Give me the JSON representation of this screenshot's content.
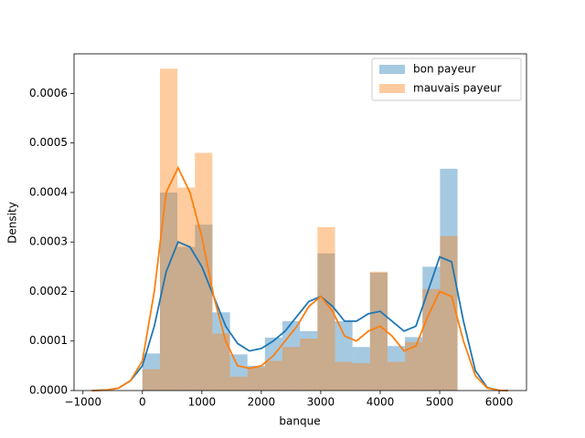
{
  "chart_data": {
    "type": "histogram",
    "xlabel": "banque",
    "ylabel": "Density",
    "bins": [
      0,
      294.4,
      588.9,
      883.3,
      1177.8,
      1472.2,
      1766.7,
      2061.1,
      2355.6,
      2650,
      2944.4,
      3238.9,
      3533.3,
      3827.8,
      4122.2,
      4416.7,
      4711.1,
      5005.6,
      5300
    ],
    "kde_x": [
      -850,
      -600,
      -400,
      -200,
      0,
      200,
      400,
      600,
      800,
      1000,
      1200,
      1400,
      1600,
      1800,
      2000,
      2200,
      2400,
      2600,
      2800,
      3000,
      3200,
      3400,
      3600,
      3800,
      4000,
      4200,
      4400,
      4600,
      4800,
      5000,
      5200,
      5400,
      5600,
      5800,
      6000,
      6150
    ],
    "series": [
      {
        "name": "bon payeur",
        "color": "#1f77b4",
        "values": [
          7.5e-05,
          0.0004,
          0.00029,
          0.000335,
          0.000158,
          7.3e-05,
          5e-05,
          0.000107,
          0.00014,
          0.00012,
          0.000277,
          0.00014,
          8.8e-05,
          0.000238,
          9e-05,
          0.000108,
          0.00025,
          0.000448
        ],
        "kde": [
          0,
          1e-06,
          5e-06,
          2e-05,
          5e-05,
          0.00013,
          0.00024,
          0.0003,
          0.00029,
          0.00025,
          0.00019,
          0.00013,
          9.5e-05,
          8e-05,
          8.5e-05,
          0.0001,
          0.00012,
          0.00015,
          0.00018,
          0.00019,
          0.00017,
          0.00014,
          0.00014,
          0.000155,
          0.00016,
          0.00014,
          0.00012,
          0.00013,
          0.0002,
          0.00027,
          0.00026,
          0.00014,
          4e-05,
          6e-06,
          5e-07,
          0
        ]
      },
      {
        "name": "mauvais payeur",
        "color": "#ff7f0e",
        "values": [
          4.3e-05,
          0.00065,
          0.00041,
          0.00048,
          0.000115,
          2.8e-05,
          4.7e-05,
          6e-05,
          8.8e-05,
          0.000105,
          0.00033,
          5.8e-05,
          5.5e-05,
          0.00024,
          5.8e-05,
          9.8e-05,
          0.000205,
          0.000312
        ],
        "kde": [
          0,
          1e-06,
          5e-06,
          2e-05,
          6e-05,
          0.0002,
          0.0004,
          0.00045,
          0.0004,
          0.00031,
          0.00019,
          0.0001,
          5e-05,
          4.5e-05,
          5e-05,
          7e-05,
          0.0001,
          0.00013,
          0.00017,
          0.00019,
          0.00016,
          0.00011,
          0.0001,
          0.00012,
          0.00013,
          0.00011,
          8e-05,
          9e-05,
          0.00015,
          0.0002,
          0.00019,
          0.0001,
          3e-05,
          5e-06,
          4e-07,
          0
        ]
      }
    ],
    "xlim": [
      -1150,
      6460
    ],
    "ylim": [
      0,
      0.00068
    ],
    "xticks": [
      {
        "value": -1000,
        "label": "−1000"
      },
      0,
      1000,
      2000,
      3000,
      4000,
      5000,
      6000
    ],
    "yticks": [
      {
        "value": 0,
        "label": "0.0000"
      },
      {
        "value": 0.0001,
        "label": "0.0001"
      },
      {
        "value": 0.0002,
        "label": "0.0002"
      },
      {
        "value": 0.0003,
        "label": "0.0003"
      },
      {
        "value": 0.0004,
        "label": "0.0004"
      },
      {
        "value": 0.0005,
        "label": "0.0005"
      },
      {
        "value": 0.0006,
        "label": "0.0006"
      }
    ],
    "legend": "upper right"
  }
}
